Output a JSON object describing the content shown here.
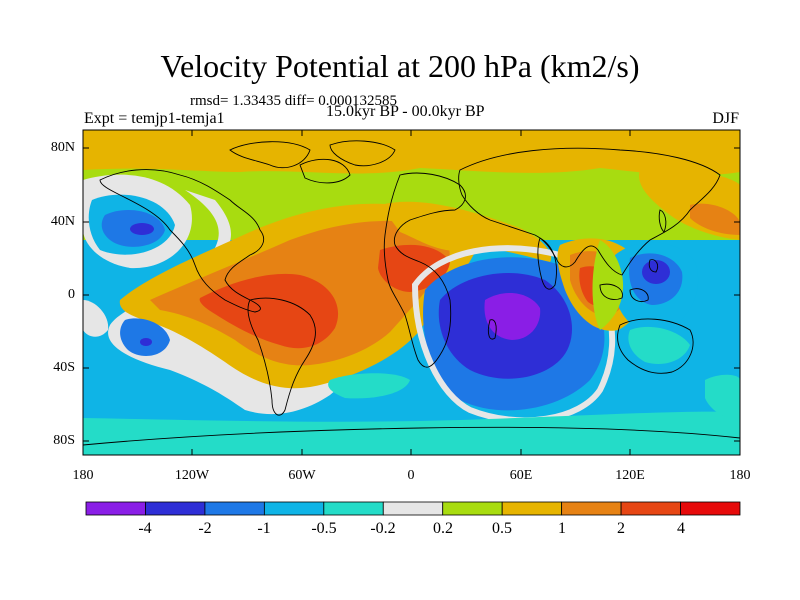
{
  "header": {
    "title": "Velocity Potential at 200 hPa (km2/s)",
    "stats": "rmsd= 1.33435 diff= 0.000132585",
    "experiment": "Expt = temjp1-temja1",
    "period": "15.0kyr BP - 00.0kyr BP",
    "season": "DJF"
  },
  "axes": {
    "lat_labels": [
      "80N",
      "40N",
      "0",
      "40S",
      "80S"
    ],
    "lon_labels": [
      "180",
      "120W",
      "60W",
      "0",
      "60E",
      "120E",
      "180"
    ]
  },
  "colorbar": {
    "labels": [
      "-4",
      "-2",
      "-1",
      "-0.5",
      "-0.2",
      "0.2",
      "0.5",
      "1",
      "2",
      "4"
    ],
    "colors": [
      "#8a1ee6",
      "#2e2ed6",
      "#1e78e6",
      "#0fb4e6",
      "#24dcc8",
      "#e6e6e6",
      "#a8dc10",
      "#e6b400",
      "#e68214",
      "#e64614",
      "#e60a0a"
    ]
  },
  "palette": {
    "neg4": "#8a1ee6",
    "neg2": "#2e2ed6",
    "neg1": "#1e78e6",
    "neg05": "#0fb4e6",
    "neg02": "#24dcc8",
    "zero": "#e6e6e6",
    "pos02": "#a8dc10",
    "pos05": "#e6b400",
    "pos1": "#e68214",
    "pos2": "#e64614",
    "pos4": "#e60a0a"
  }
}
